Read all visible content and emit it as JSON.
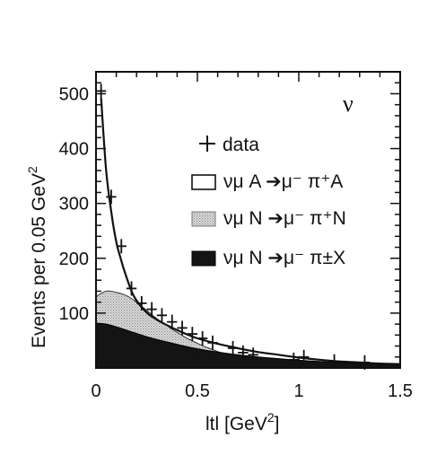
{
  "chart_data": {
    "type": "area",
    "xlabel": "ltl [GeV",
    "xlabel_sup": "2",
    "xlabel_end": "]",
    "ylabel": "Events per 0.05  GeV",
    "ylabel_sup": "2",
    "xlim": [
      0,
      1.5
    ],
    "ylim": [
      0,
      540
    ],
    "x_ticks": [
      0,
      0.5,
      1,
      1.5
    ],
    "x_tick_labels": [
      "0",
      "0.5",
      "1",
      "1.5"
    ],
    "y_ticks": [
      100,
      200,
      300,
      400,
      500
    ],
    "y_tick_labels": [
      "100",
      "200",
      "300",
      "400",
      "500"
    ],
    "annotation": "ν",
    "legend_position": "top-right",
    "legend": [
      {
        "marker": "+",
        "label": "data"
      },
      {
        "marker": "open-box",
        "label": "νμ A ➔μ⁻ π⁺A"
      },
      {
        "marker": "hatched-box",
        "label": "νμ N ➔μ⁻ π⁺N"
      },
      {
        "marker": "filled-box",
        "label": "νμ N ➔μ⁻ π±X"
      }
    ],
    "data_points": {
      "x": [
        0.025,
        0.075,
        0.125,
        0.175,
        0.225,
        0.275,
        0.325,
        0.375,
        0.425,
        0.475,
        0.525,
        0.575,
        0.675,
        0.725,
        0.775,
        0.975,
        1.025,
        1.175,
        1.325
      ],
      "y": [
        505,
        312,
        222,
        145,
        118,
        107,
        96,
        84,
        73,
        62,
        54,
        46,
        36,
        28,
        24,
        15,
        20,
        12,
        10
      ]
    },
    "total_curve": {
      "x": [
        0.025,
        0.05,
        0.075,
        0.1,
        0.125,
        0.15,
        0.175,
        0.2,
        0.25,
        0.3,
        0.35,
        0.4,
        0.45,
        0.5,
        0.6,
        0.7,
        0.8,
        0.9,
        1.0,
        1.1,
        1.2,
        1.3,
        1.4,
        1.5
      ],
      "y": [
        492,
        360,
        285,
        230,
        195,
        166,
        140,
        123,
        101,
        88,
        78,
        69,
        61,
        54,
        44,
        36,
        29,
        24,
        19,
        15,
        12,
        10,
        8,
        7
      ]
    },
    "coherent_pi_plus_N_top": {
      "x": [
        0,
        0.05,
        0.1,
        0.15,
        0.2,
        0.25,
        0.3,
        0.35,
        0.4,
        0.45,
        0.5,
        0.55,
        0.6,
        0.65,
        0.7,
        0.75
      ],
      "y": [
        130,
        140,
        138,
        132,
        120,
        105,
        90,
        77,
        65,
        54,
        45,
        37,
        30,
        24,
        19,
        15
      ]
    },
    "pi_pm_X_top": {
      "x": [
        0,
        0.05,
        0.1,
        0.15,
        0.2,
        0.25,
        0.3,
        0.4,
        0.5,
        0.6,
        0.7,
        0.8,
        0.9,
        1.0,
        1.1,
        1.2,
        1.3,
        1.4,
        1.5
      ],
      "y": [
        82,
        80,
        75,
        69,
        63,
        57,
        52,
        43,
        35,
        29,
        24,
        20,
        17,
        14,
        12,
        10,
        9,
        8,
        7
      ]
    }
  }
}
